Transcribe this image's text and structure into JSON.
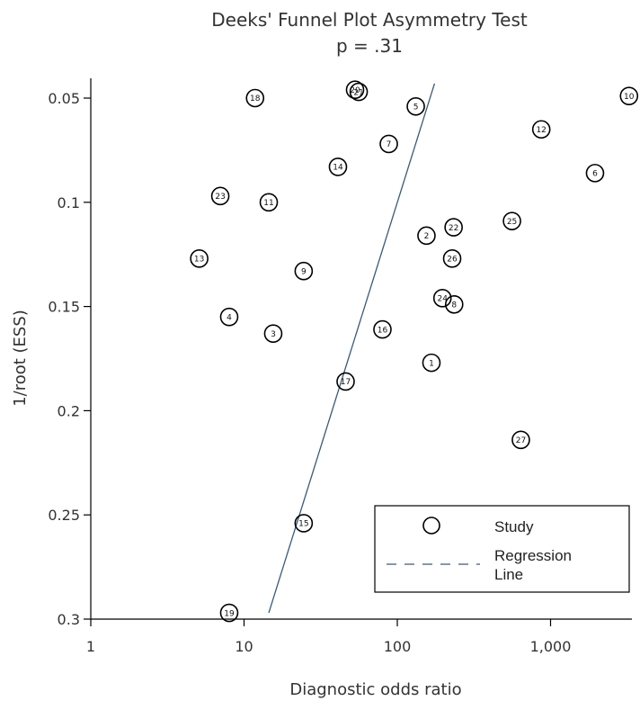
{
  "chart_data": {
    "type": "scatter",
    "title": "Deeks' Funnel Plot Asymmetry Test",
    "subtitle": "p = .31",
    "xlabel": "Diagnostic odds ratio",
    "ylabel": "1/root (ESS)",
    "x_scale": "log",
    "xlim": [
      1,
      3500
    ],
    "ylim": [
      0.3,
      0.04
    ],
    "x_ticks": [
      1,
      10,
      100,
      1000
    ],
    "x_tick_labels": [
      "1",
      "10",
      "100",
      "1,000"
    ],
    "y_ticks": [
      0.05,
      0.1,
      0.15,
      0.2,
      0.25,
      0.3
    ],
    "y_tick_labels": [
      "0.05",
      "0.1",
      "0.15",
      "0.2",
      "0.25",
      "0.3"
    ],
    "grid": false,
    "legend_position": "bottom-right",
    "legend": {
      "study_label": "Study",
      "line_label_1": "Regression",
      "line_label_2": "Line"
    },
    "colors": {
      "points": "#000000",
      "regression_line": "#3a5a78",
      "text": "#333333"
    },
    "series": [
      {
        "name": "Study",
        "points": [
          {
            "label": "1",
            "x": 167,
            "y": 0.177
          },
          {
            "label": "2",
            "x": 155,
            "y": 0.116
          },
          {
            "label": "3",
            "x": 15.5,
            "y": 0.163
          },
          {
            "label": "4",
            "x": 8.0,
            "y": 0.155
          },
          {
            "label": "5",
            "x": 132,
            "y": 0.054
          },
          {
            "label": "6",
            "x": 1950,
            "y": 0.086
          },
          {
            "label": "7",
            "x": 88,
            "y": 0.072
          },
          {
            "label": "8",
            "x": 235,
            "y": 0.149
          },
          {
            "label": "9",
            "x": 24.5,
            "y": 0.133
          },
          {
            "label": "10",
            "x": 3250,
            "y": 0.049
          },
          {
            "label": "11",
            "x": 14.5,
            "y": 0.1
          },
          {
            "label": "12",
            "x": 870,
            "y": 0.065
          },
          {
            "label": "13",
            "x": 5.1,
            "y": 0.127
          },
          {
            "label": "14",
            "x": 41,
            "y": 0.083
          },
          {
            "label": "15",
            "x": 24.5,
            "y": 0.254
          },
          {
            "label": "16",
            "x": 80,
            "y": 0.161
          },
          {
            "label": "17",
            "x": 46,
            "y": 0.186
          },
          {
            "label": "18",
            "x": 11.8,
            "y": 0.05
          },
          {
            "label": "19",
            "x": 8.0,
            "y": 0.297
          },
          {
            "label": "20",
            "x": 53,
            "y": 0.046
          },
          {
            "label": "21",
            "x": 56,
            "y": 0.047
          },
          {
            "label": "22",
            "x": 233,
            "y": 0.112
          },
          {
            "label": "23",
            "x": 7.0,
            "y": 0.097
          },
          {
            "label": "24",
            "x": 197,
            "y": 0.146
          },
          {
            "label": "25",
            "x": 560,
            "y": 0.109
          },
          {
            "label": "26",
            "x": 228,
            "y": 0.127
          },
          {
            "label": "27",
            "x": 640,
            "y": 0.214
          }
        ]
      },
      {
        "name": "Regression Line",
        "type": "line",
        "points": [
          {
            "x": 14.5,
            "y": 0.297
          },
          {
            "x": 175,
            "y": 0.043
          }
        ]
      }
    ]
  }
}
